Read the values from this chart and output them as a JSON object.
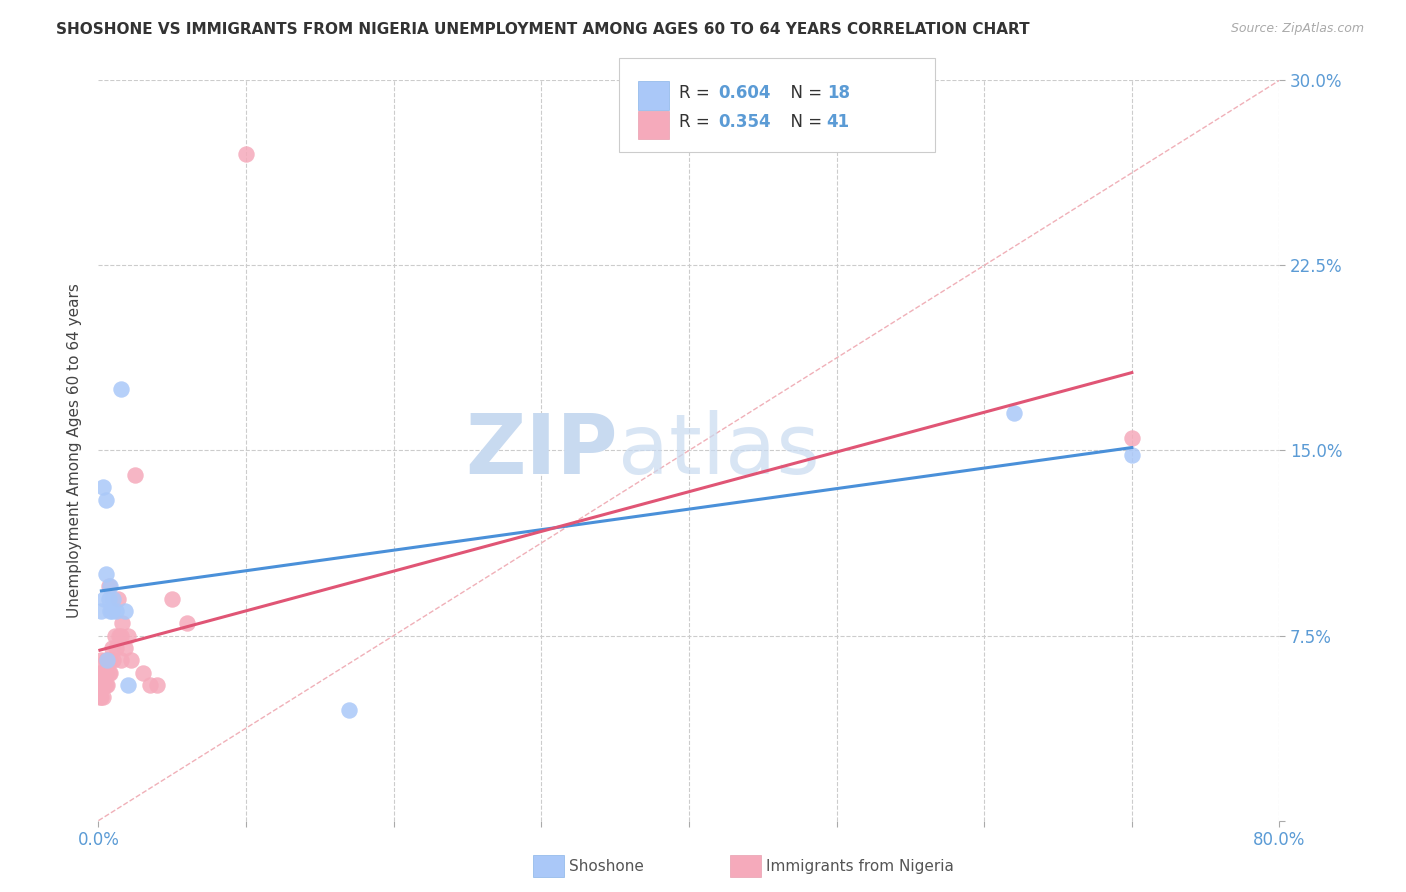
{
  "title": "SHOSHONE VS IMMIGRANTS FROM NIGERIA UNEMPLOYMENT AMONG AGES 60 TO 64 YEARS CORRELATION CHART",
  "source": "Source: ZipAtlas.com",
  "ylabel": "Unemployment Among Ages 60 to 64 years",
  "xlim": [
    0,
    0.8
  ],
  "ylim": [
    0,
    0.3
  ],
  "xticks": [
    0.0,
    0.1,
    0.2,
    0.3,
    0.4,
    0.5,
    0.6,
    0.7,
    0.8
  ],
  "xticklabels": [
    "0.0%",
    "",
    "",
    "",
    "",
    "",
    "",
    "",
    "80.0%"
  ],
  "yticks": [
    0.0,
    0.075,
    0.15,
    0.225,
    0.3
  ],
  "yticklabels": [
    "",
    "7.5%",
    "15.0%",
    "22.5%",
    "30.0%"
  ],
  "shoshone_color": "#aac8f8",
  "nigeria_color": "#f5aabb",
  "shoshone_line_color": "#4a90d9",
  "nigeria_line_color": "#e05575",
  "shoshone_R": "0.604",
  "shoshone_N": "18",
  "nigeria_R": "0.354",
  "nigeria_N": "41",
  "shoshone_x": [
    0.002,
    0.003,
    0.004,
    0.005,
    0.005,
    0.006,
    0.007,
    0.008,
    0.008,
    0.009,
    0.01,
    0.012,
    0.015,
    0.018,
    0.02,
    0.17,
    0.62,
    0.7
  ],
  "shoshone_y": [
    0.085,
    0.135,
    0.09,
    0.1,
    0.13,
    0.065,
    0.09,
    0.085,
    0.095,
    0.085,
    0.09,
    0.085,
    0.175,
    0.085,
    0.055,
    0.045,
    0.165,
    0.148
  ],
  "nigeria_x": [
    0.001,
    0.001,
    0.001,
    0.002,
    0.002,
    0.002,
    0.002,
    0.003,
    0.003,
    0.003,
    0.004,
    0.004,
    0.005,
    0.005,
    0.005,
    0.006,
    0.006,
    0.007,
    0.007,
    0.008,
    0.008,
    0.009,
    0.01,
    0.011,
    0.012,
    0.013,
    0.014,
    0.015,
    0.015,
    0.016,
    0.018,
    0.02,
    0.022,
    0.025,
    0.03,
    0.035,
    0.04,
    0.05,
    0.06,
    0.1,
    0.7
  ],
  "nigeria_y": [
    0.05,
    0.055,
    0.06,
    0.05,
    0.055,
    0.06,
    0.065,
    0.05,
    0.055,
    0.06,
    0.055,
    0.06,
    0.055,
    0.06,
    0.065,
    0.055,
    0.065,
    0.06,
    0.095,
    0.06,
    0.065,
    0.07,
    0.065,
    0.075,
    0.07,
    0.09,
    0.075,
    0.065,
    0.075,
    0.08,
    0.07,
    0.075,
    0.065,
    0.14,
    0.06,
    0.055,
    0.055,
    0.09,
    0.08,
    0.27,
    0.155
  ],
  "background_color": "#ffffff",
  "grid_color": "#cccccc",
  "ref_line_color": "#f0b0b8",
  "title_fontsize": 11,
  "axis_tick_color": "#5b9bd5",
  "legend_number_color": "#5b9bd5",
  "legend_text_color": "#333333",
  "watermark_zip": "ZIP",
  "watermark_atlas": "atlas",
  "watermark_color": "#c8daf0"
}
